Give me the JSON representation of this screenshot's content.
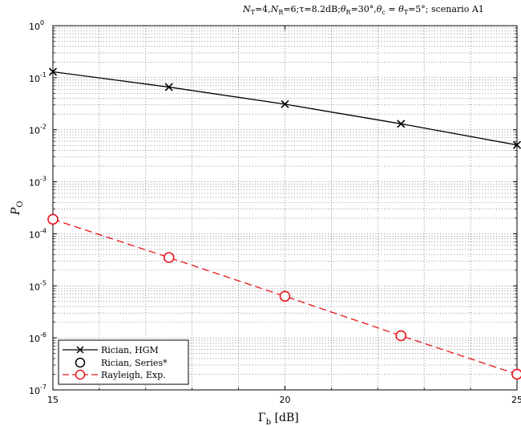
{
  "chart_data": {
    "type": "line",
    "title": "N_T=4, N_R=6; τ=8.2dB; θ_R=30°, θ_c = θ_T=5°; scenario A1",
    "title_parts": {
      "nt_value": "=4,",
      "nr_value": "=6;",
      "tau": "τ=8.2dB;",
      "theta_r_value": "=30°,",
      "theta_eq": " = ",
      "theta_t_value": "=5°;",
      "scenario": " scenario A1"
    },
    "xlabel": "Γ_b [dB]",
    "xlabel_parts": {
      "symbol": "Γ",
      "sub": "b",
      "unit": "[dB]"
    },
    "ylabel": "P_O",
    "ylabel_parts": {
      "symbol": "P",
      "sub": "O"
    },
    "xlim": [
      15,
      25
    ],
    "ylim_log10": [
      -7,
      0
    ],
    "yscale": "log",
    "grid": true,
    "legend_position": "bottom-left",
    "x_ticks": [
      {
        "value": 15,
        "label": "15"
      },
      {
        "value": 20,
        "label": "20"
      },
      {
        "value": 25,
        "label": "25"
      }
    ],
    "y_ticks": [
      {
        "exp": 0,
        "base": "10",
        "sup": "0"
      },
      {
        "exp": -1,
        "base": "10",
        "sup": "-1"
      },
      {
        "exp": -2,
        "base": "10",
        "sup": "-2"
      },
      {
        "exp": -3,
        "base": "10",
        "sup": "-3"
      },
      {
        "exp": -4,
        "base": "10",
        "sup": "-4"
      },
      {
        "exp": -5,
        "base": "10",
        "sup": "-5"
      },
      {
        "exp": -6,
        "base": "10",
        "sup": "-6"
      },
      {
        "exp": -7,
        "base": "10",
        "sup": "-7"
      }
    ],
    "series": [
      {
        "name": "Rician, HGM",
        "color": "#000000",
        "line_style": "solid",
        "marker": "x",
        "x": [
          15,
          17.5,
          20,
          22.5,
          25
        ],
        "y": [
          0.13,
          0.066,
          0.031,
          0.013,
          0.0051
        ]
      },
      {
        "name": "Rician, Series*",
        "color": "#000000",
        "line_style": "none",
        "marker": "circle",
        "x": [],
        "y": []
      },
      {
        "name": "Rayleigh, Exp.",
        "color": "#e8141b",
        "line_style": "dashed",
        "marker": "circle",
        "x": [
          15,
          17.5,
          20,
          22.5,
          25
        ],
        "y": [
          0.00019,
          3.5e-05,
          6.3e-06,
          1.1e-06,
          2e-07
        ]
      }
    ]
  }
}
